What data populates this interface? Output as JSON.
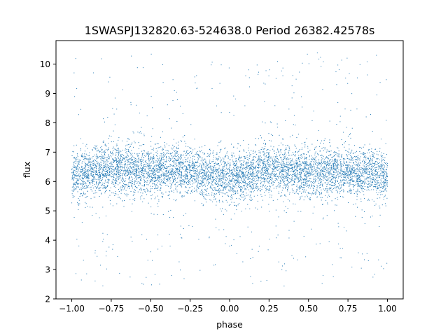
{
  "chart_data": {
    "type": "scatter",
    "title": "1SWASPJ132820.63-524638.0 Period 26382.42578s",
    "xlabel": "phase",
    "ylabel": "flux",
    "xlim": [
      -1.1,
      1.1
    ],
    "ylim": [
      2.0,
      10.8
    ],
    "xticks": [
      -1.0,
      -0.75,
      -0.5,
      -0.25,
      0.0,
      0.25,
      0.5,
      0.75,
      1.0
    ],
    "xtick_labels": [
      "−1.00",
      "−0.75",
      "−0.50",
      "−0.25",
      "0.00",
      "0.25",
      "0.50",
      "0.75",
      "1.00"
    ],
    "yticks": [
      2,
      3,
      4,
      5,
      6,
      7,
      8,
      9,
      10
    ],
    "ytick_labels": [
      "2",
      "3",
      "4",
      "5",
      "6",
      "7",
      "8",
      "9",
      "10"
    ],
    "grid": false,
    "legend": "none",
    "series": [
      {
        "color": "#1f77b4",
        "marker": "point",
        "x_range": [
          -1.0,
          1.0
        ],
        "y_core_range": [
          5.0,
          7.5
        ],
        "y_full_range": [
          2.4,
          10.4
        ],
        "y_center_by_phase": [
          {
            "x": -1.0,
            "y": 6.2
          },
          {
            "x": -0.75,
            "y": 6.45
          },
          {
            "x": -0.5,
            "y": 6.35
          },
          {
            "x": -0.25,
            "y": 6.4
          },
          {
            "x": 0.0,
            "y": 6.1
          },
          {
            "x": 0.25,
            "y": 6.45
          },
          {
            "x": 0.5,
            "y": 6.3
          },
          {
            "x": 0.75,
            "y": 6.35
          },
          {
            "x": 1.0,
            "y": 6.2
          }
        ]
      }
    ]
  }
}
